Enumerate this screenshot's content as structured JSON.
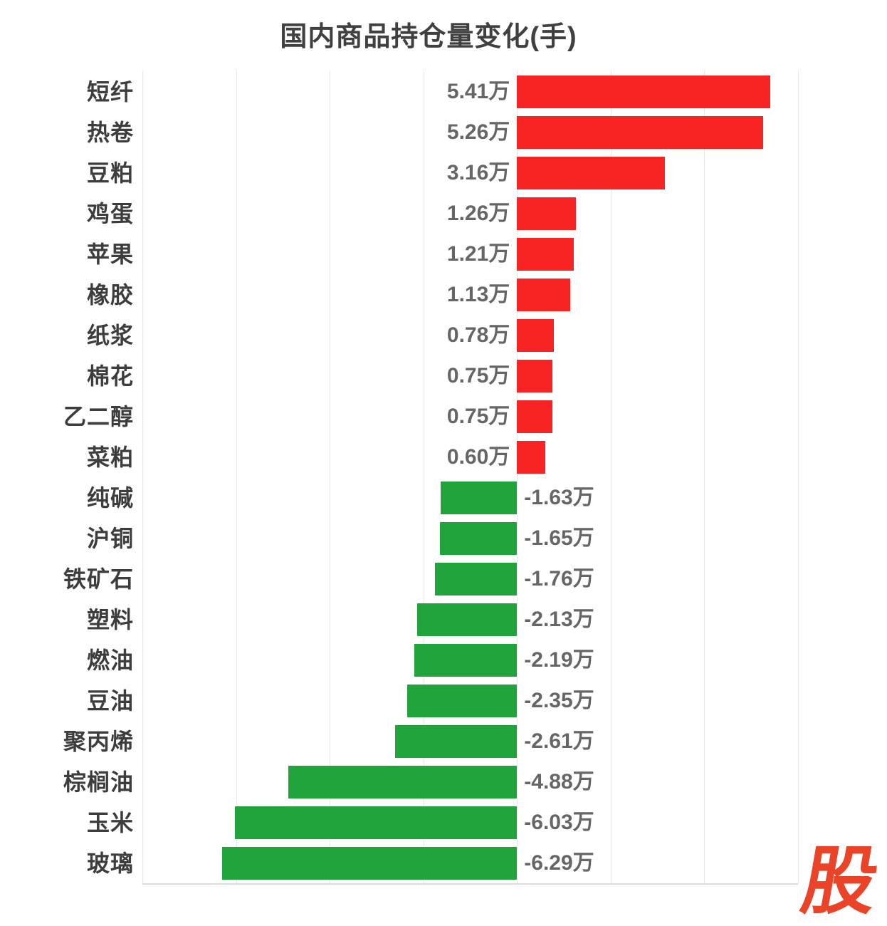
{
  "title": "国内商品持仓量变化(手)",
  "logo": {
    "text": "股",
    "color": "#ea4428"
  },
  "chart_data": {
    "type": "bar",
    "orientation": "horizontal",
    "title": "国内商品持仓量变化(手)",
    "unit": "万手",
    "categories": [
      "短纤",
      "热卷",
      "豆粕",
      "鸡蛋",
      "苹果",
      "橡胶",
      "纸浆",
      "棉花",
      "乙二醇",
      "菜粕",
      "纯碱",
      "沪铜",
      "铁矿石",
      "塑料",
      "燃油",
      "豆油",
      "聚丙烯",
      "棕榈油",
      "玉米",
      "玻璃"
    ],
    "values": [
      5.41,
      5.26,
      3.16,
      1.26,
      1.21,
      1.13,
      0.78,
      0.75,
      0.75,
      0.6,
      -1.63,
      -1.65,
      -1.76,
      -2.13,
      -2.19,
      -2.35,
      -2.61,
      -4.88,
      -6.03,
      -6.29
    ],
    "value_labels": [
      "5.41万",
      "5.26万",
      "3.16万",
      "1.26万",
      "1.21万",
      "1.13万",
      "0.78万",
      "0.75万",
      "0.75万",
      "0.60万",
      "-1.63万",
      "-1.65万",
      "-1.76万",
      "-2.13万",
      "-2.19万",
      "-2.35万",
      "-2.61万",
      "-4.88万",
      "-6.03万",
      "-6.29万"
    ],
    "xlim": [
      -8,
      6
    ],
    "grid_step": 2,
    "grid": true,
    "legend": "none",
    "positive_color": "#f82323",
    "negative_color": "#21a43c",
    "category_text_color": "#3d3d3d",
    "value_text_color": "#666666",
    "gridline_color": "#e8e8e8"
  }
}
